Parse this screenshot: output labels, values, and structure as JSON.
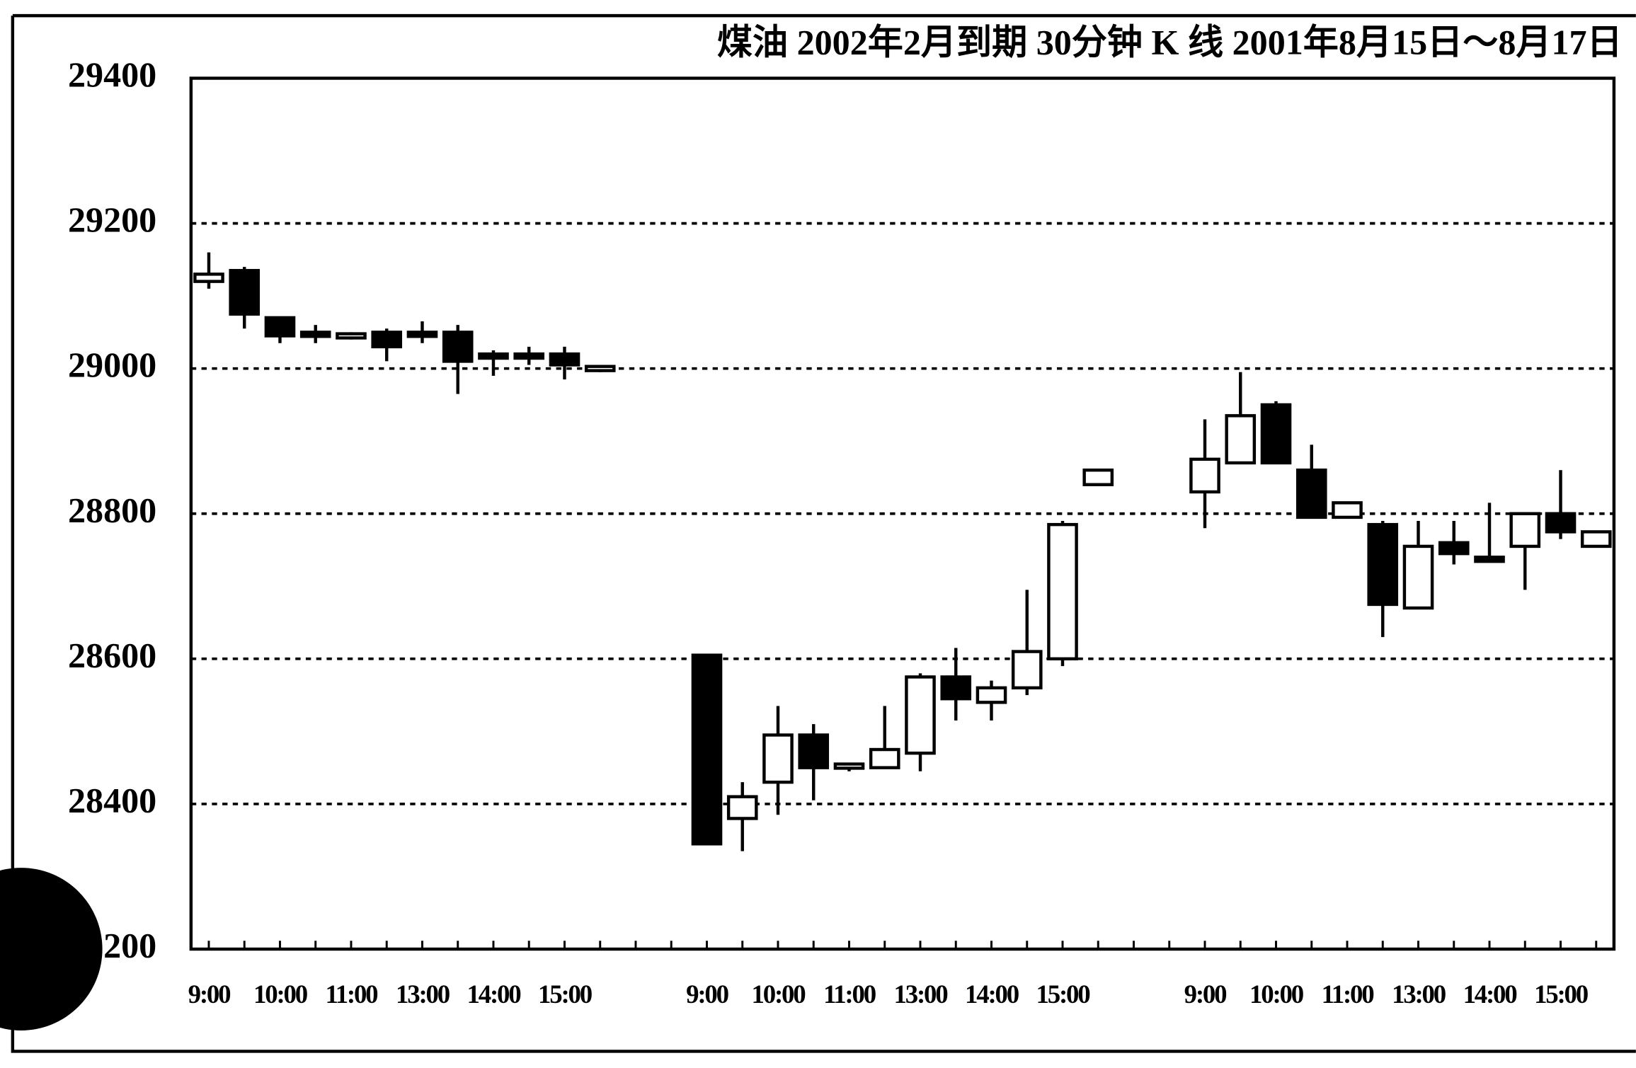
{
  "chart_data": {
    "type": "candlestick",
    "title": "煤油  2002年2月到期   30分钟 K 线  2001年8月15日～8月17日",
    "categories": [
      "9:00",
      null,
      "10:00",
      null,
      "11:00",
      null,
      "13:00",
      null,
      "14:00",
      null,
      "15:00",
      null,
      null,
      null,
      "9:00",
      null,
      "10:00",
      null,
      "11:00",
      null,
      "13:00",
      null,
      "14:00",
      null,
      "15:00",
      null,
      null,
      null,
      "9:00",
      null,
      "10:00",
      null,
      "11:00",
      null,
      "13:00",
      null,
      "14:00",
      null,
      "15:00",
      null
    ],
    "open": [
      29120,
      29135,
      29070,
      29050,
      29045,
      29050,
      29050,
      29050,
      29020,
      29020,
      29020,
      29000,
      null,
      null,
      28605,
      28380,
      28430,
      28495,
      28450,
      28450,
      28470,
      28575,
      28540,
      28560,
      28600,
      28840,
      null,
      null,
      28830,
      28870,
      28950,
      28860,
      28795,
      28785,
      28670,
      28760,
      28740,
      28755,
      28800,
      28755
    ],
    "high": [
      29160,
      29140,
      29070,
      29060,
      29050,
      29055,
      29065,
      29060,
      29025,
      29030,
      29030,
      29005,
      null,
      null,
      28605,
      28430,
      28535,
      28510,
      28455,
      28535,
      28580,
      28615,
      28570,
      28695,
      28790,
      28860,
      null,
      null,
      28930,
      28995,
      28955,
      28895,
      28815,
      28790,
      28790,
      28790,
      28815,
      28800,
      28860,
      28775
    ],
    "low": [
      29110,
      29055,
      29035,
      29035,
      29040,
      29010,
      29035,
      28965,
      28990,
      29005,
      28985,
      28995,
      null,
      null,
      28345,
      28335,
      28385,
      28405,
      28445,
      28450,
      28445,
      28515,
      28515,
      28550,
      28590,
      28840,
      null,
      null,
      28780,
      28870,
      28870,
      28795,
      28795,
      28630,
      28670,
      28730,
      28735,
      28695,
      28765,
      28755
    ],
    "close": [
      29130,
      29075,
      29045,
      29045,
      29045,
      29030,
      29045,
      29010,
      29015,
      29015,
      29005,
      29000,
      null,
      null,
      28345,
      28410,
      28495,
      28450,
      28455,
      28475,
      28575,
      28545,
      28560,
      28610,
      28785,
      28860,
      null,
      null,
      28875,
      28935,
      28870,
      28795,
      28815,
      28675,
      28755,
      28745,
      28735,
      28800,
      28775,
      28775
    ],
    "ylim": [
      28200,
      29400
    ],
    "yticks": [
      28200,
      28400,
      28600,
      28800,
      29000,
      29200,
      29400
    ],
    "grid": true,
    "up_color": "#ffffff",
    "down_color": "#000000"
  }
}
